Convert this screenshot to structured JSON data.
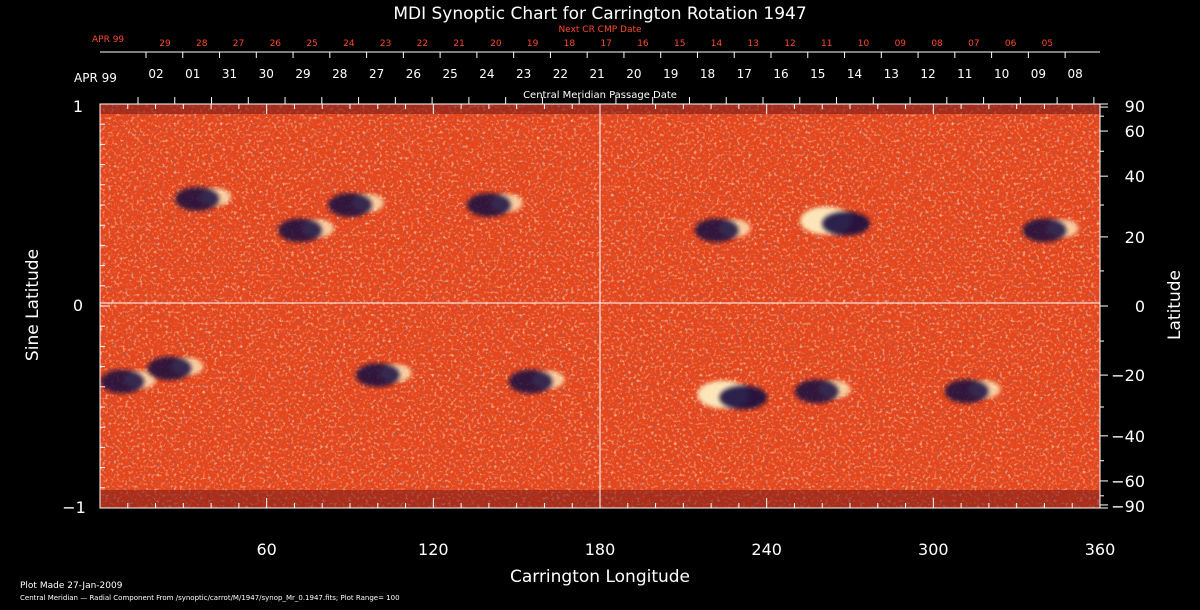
{
  "colors": {
    "background": "#000000",
    "axis": "#ffffff",
    "cr_label": "#ff4a2a",
    "map_base": "#e8441a",
    "map_bright": "#fff2b0",
    "map_dark": "#14103a"
  },
  "chart_data": {
    "type": "heatmap",
    "title": "MDI Synoptic Chart for Carrington Rotation 1947",
    "xlabel": "Carrington Longitude",
    "ylabel_left": "Sine Latitude",
    "ylabel_right": "Latitude",
    "xlim": [
      0,
      360
    ],
    "ylim": [
      -1,
      1
    ],
    "x_ticks": [
      60,
      120,
      180,
      240,
      300,
      360
    ],
    "y_ticks_left": [
      "1",
      "0",
      "−1"
    ],
    "y_ticks_right": [
      90,
      60,
      40,
      20,
      0,
      -20,
      -40,
      -60,
      -90
    ],
    "cmp_label": "Central Meridian Passage Date",
    "cmp_month": "APR 99",
    "cmp_dates": [
      "02",
      "01",
      "31",
      "30",
      "29",
      "28",
      "27",
      "26",
      "25",
      "24",
      "23",
      "22",
      "21",
      "20",
      "19",
      "18",
      "17",
      "16",
      "15",
      "14",
      "13",
      "12",
      "11",
      "10",
      "09",
      "08"
    ],
    "next_cr_label": "Next CR CMP Date",
    "next_cr_month": "APR 99",
    "next_cr_dates": [
      "29",
      "28",
      "27",
      "26",
      "25",
      "24",
      "23",
      "22",
      "21",
      "20",
      "19",
      "18",
      "17",
      "16",
      "15",
      "14",
      "13",
      "12",
      "11",
      "10",
      "09",
      "08",
      "07",
      "06",
      "05"
    ],
    "plot_made": "Plot Made 27-Jan-2009",
    "footer_note": "Central Meridian — Radial Component From /synoptic/carrot/M/1947/synop_Mr_0.1947.fits; Plot Range=  100",
    "active_regions_north": [
      {
        "lon": 35,
        "lat": 32,
        "polarity": "negative"
      },
      {
        "lon": 72,
        "lat": 22,
        "polarity": "negative"
      },
      {
        "lon": 90,
        "lat": 30,
        "polarity": "negative"
      },
      {
        "lon": 140,
        "lat": 30,
        "polarity": "negative"
      },
      {
        "lon": 222,
        "lat": 22,
        "polarity": "negative"
      },
      {
        "lon": 265,
        "lat": 25,
        "polarity": "mixed"
      },
      {
        "lon": 340,
        "lat": 22,
        "polarity": "negative"
      }
    ],
    "active_regions_south": [
      {
        "lon": 8,
        "lat": -22,
        "polarity": "negative"
      },
      {
        "lon": 25,
        "lat": -18,
        "polarity": "negative"
      },
      {
        "lon": 100,
        "lat": -20,
        "polarity": "negative"
      },
      {
        "lon": 155,
        "lat": -22,
        "polarity": "negative"
      },
      {
        "lon": 228,
        "lat": -26,
        "polarity": "mixed"
      },
      {
        "lon": 258,
        "lat": -25,
        "polarity": "negative"
      },
      {
        "lon": 312,
        "lat": -25,
        "polarity": "negative"
      }
    ]
  }
}
